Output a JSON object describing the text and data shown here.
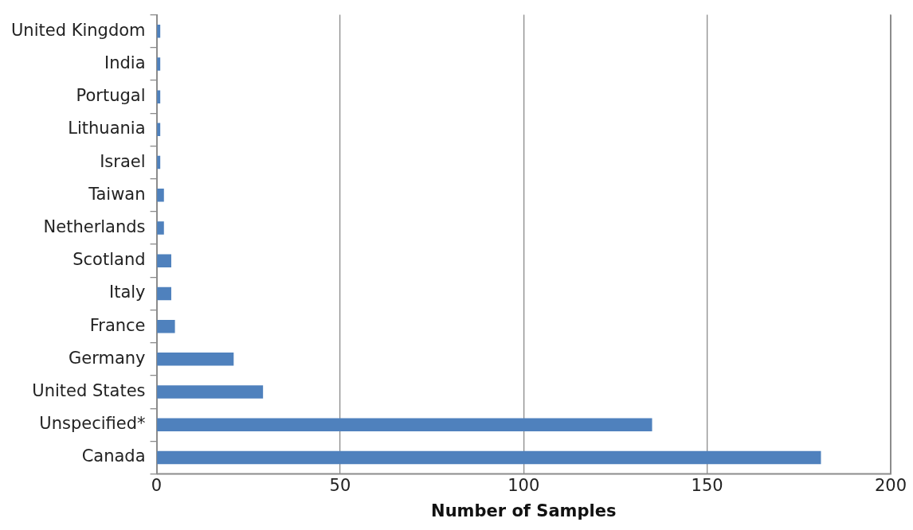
{
  "chart_data": {
    "type": "bar",
    "orientation": "horizontal",
    "xlabel": "Number of Samples",
    "categories": [
      "United Kingdom",
      "India",
      "Portugal",
      "Lithuania",
      "Israel",
      "Taiwan",
      "Netherlands",
      "Scotland",
      "Italy",
      "France",
      "Germany",
      "United States",
      "Unspecified*",
      "Canada"
    ],
    "values": [
      1,
      1,
      1,
      1,
      1,
      2,
      2,
      4,
      4,
      5,
      21,
      29,
      135,
      181
    ],
    "color": "#4f81bd",
    "xlim": [
      0,
      200
    ],
    "xticks": [
      0,
      50,
      100,
      150,
      200
    ],
    "grid": "x",
    "legend": false
  }
}
